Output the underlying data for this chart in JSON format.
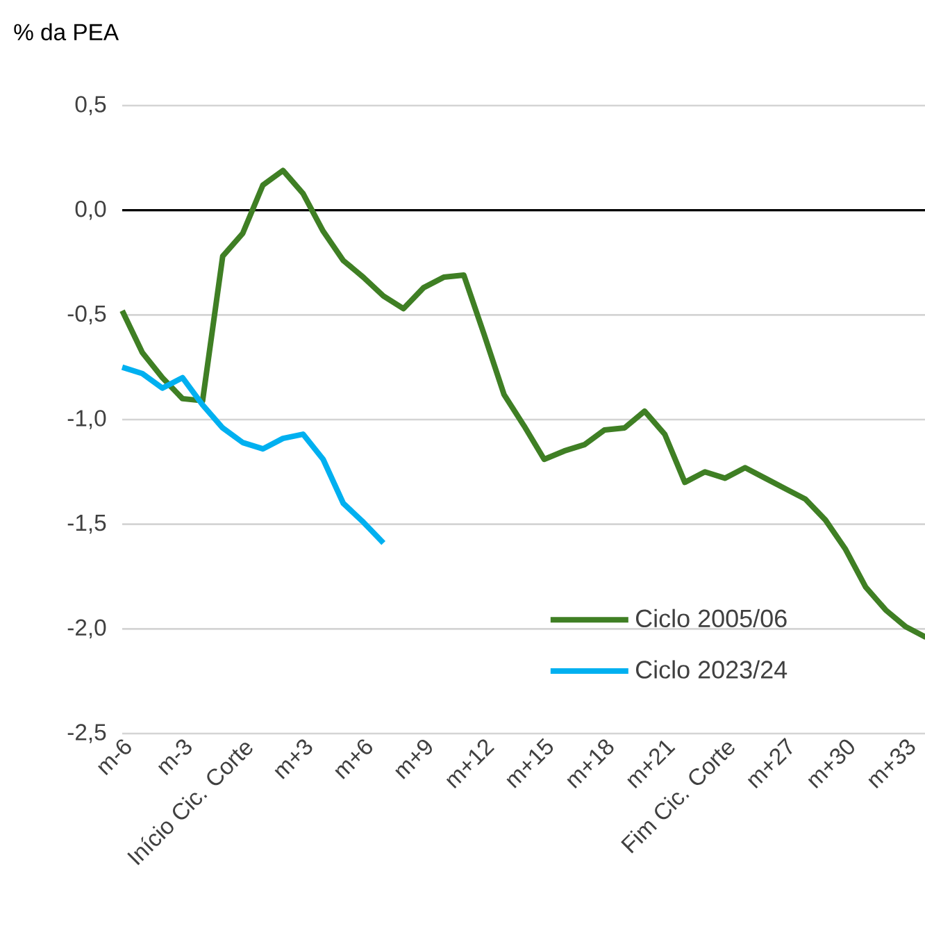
{
  "chart_data": {
    "type": "line",
    "ylabel": "% da PEA",
    "categories": [
      "m-6",
      null,
      null,
      "m-3",
      null,
      null,
      "Início Cic. Corte",
      null,
      null,
      "m+3",
      null,
      null,
      "m+6",
      null,
      null,
      "m+9",
      null,
      null,
      "m+12",
      null,
      null,
      "m+15",
      null,
      null,
      "m+18",
      null,
      null,
      "m+21",
      null,
      null,
      "Fim Cic. Corte",
      null,
      null,
      "m+27",
      null,
      null,
      "m+30",
      null,
      null,
      "m+33",
      null
    ],
    "series": [
      {
        "name": "Ciclo 2005/06",
        "color": "#3f7f24",
        "values": [
          -0.48,
          -0.68,
          -0.8,
          -0.9,
          -0.91,
          -0.22,
          -0.11,
          0.12,
          0.19,
          0.08,
          -0.1,
          -0.24,
          -0.32,
          -0.41,
          -0.47,
          -0.37,
          -0.32,
          -0.31,
          -0.59,
          -0.88,
          -1.03,
          -1.19,
          -1.15,
          -1.12,
          -1.05,
          -1.04,
          -0.96,
          -1.07,
          -1.3,
          -1.25,
          -1.28,
          -1.23,
          -1.28,
          -1.33,
          -1.38,
          -1.48,
          -1.62,
          -1.8,
          -1.91,
          -1.99,
          -2.04
        ]
      },
      {
        "name": "Ciclo 2023/24",
        "color": "#00b0f0",
        "values": [
          -0.75,
          -0.78,
          -0.85,
          -0.8,
          -0.93,
          -1.04,
          -1.11,
          -1.14,
          -1.09,
          -1.07,
          -1.19,
          -1.4,
          -1.49,
          -1.59,
          null,
          null,
          null,
          null,
          null,
          null,
          null,
          null,
          null,
          null,
          null,
          null,
          null,
          null,
          null,
          null,
          null,
          null,
          null,
          null,
          null,
          null,
          null,
          null,
          null,
          null,
          null
        ]
      }
    ],
    "ylim": [
      -2.5,
      0.5
    ],
    "yticks": [
      {
        "value": -2.5,
        "label": "-2,5"
      },
      {
        "value": -2,
        "label": "-2,0"
      },
      {
        "value": -1.5,
        "label": "-1,5"
      },
      {
        "value": -1,
        "label": "-1,0"
      },
      {
        "value": -0.5,
        "label": "-0,5"
      },
      {
        "value": 0,
        "label": "0,0"
      },
      {
        "value": 0.5,
        "label": "0,5"
      }
    ],
    "grid": "y",
    "legend": "bottom right",
    "ref_lines": [
      {
        "axis": "y",
        "value": 0,
        "color": "#000000"
      }
    ]
  }
}
